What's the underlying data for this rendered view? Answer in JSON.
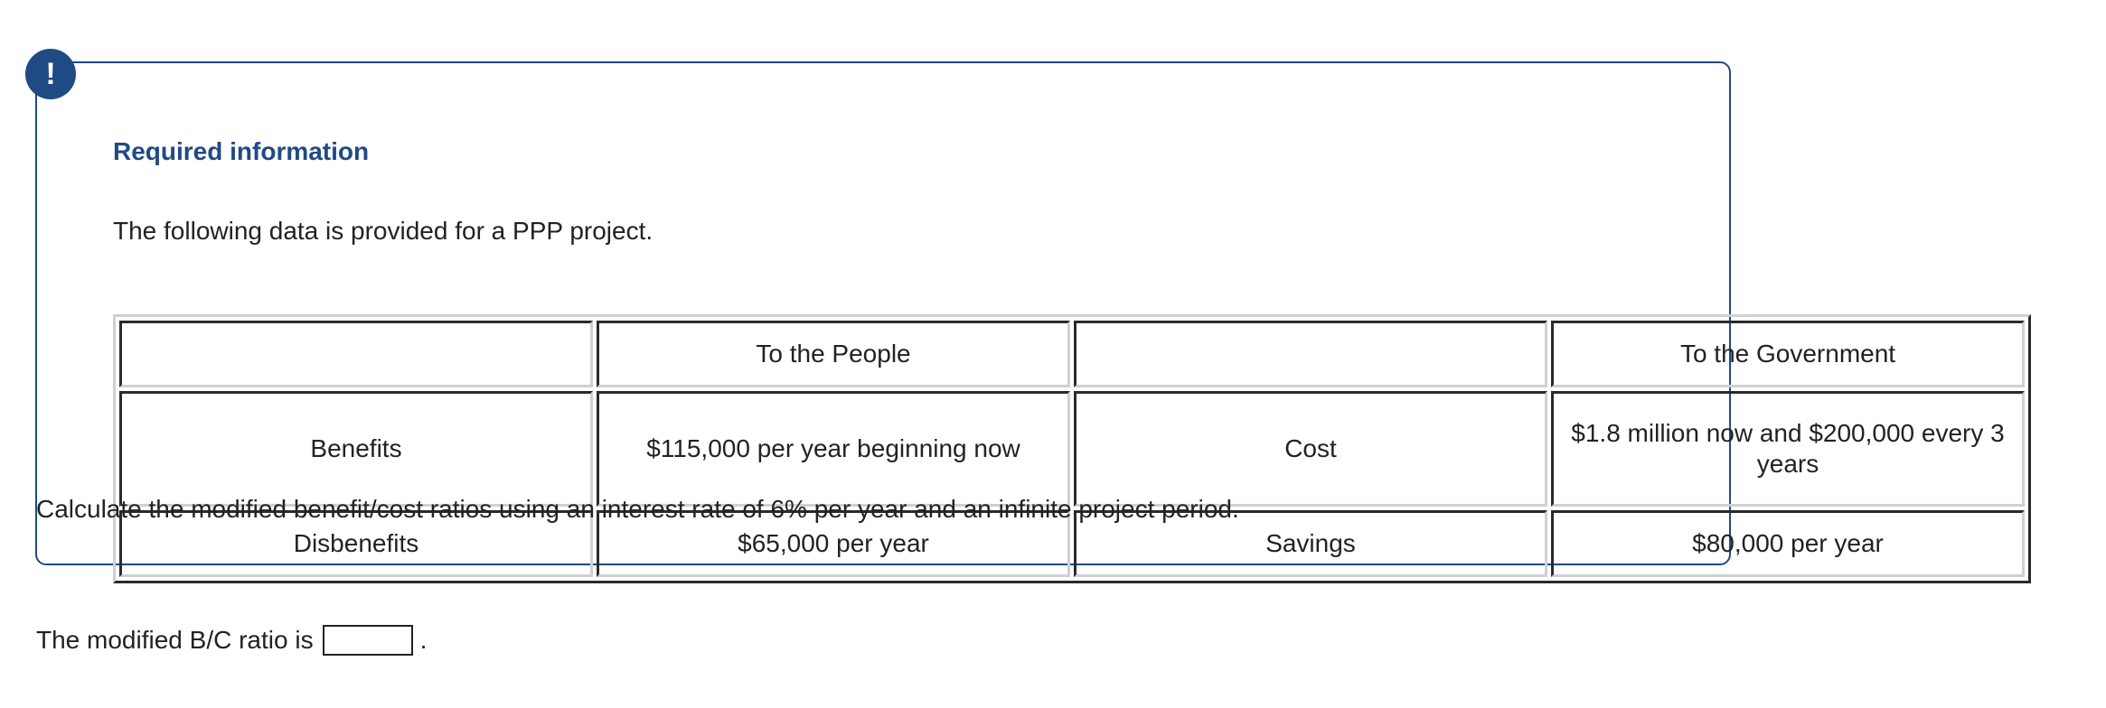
{
  "alert_icon": "!",
  "info": {
    "heading": "Required information",
    "intro": "The following data is provided for a PPP project.",
    "table": {
      "rows": [
        [
          "",
          "To the People",
          "",
          "To the Government"
        ],
        [
          "Benefits",
          "$115,000 per year beginning now",
          "Cost",
          "$1.8 million now and $200,000 every 3 years"
        ],
        [
          "Disbenefits",
          "$65,000 per year",
          "Savings",
          "$80,000 per year"
        ]
      ]
    }
  },
  "question": "Calculate the modified benefit/cost ratios using an interest rate of 6% per year and an infinite project period.",
  "answer": {
    "label": "The modified B/C ratio is",
    "value": "",
    "suffix": "."
  },
  "colors": {
    "accent": "#1f4a84"
  }
}
